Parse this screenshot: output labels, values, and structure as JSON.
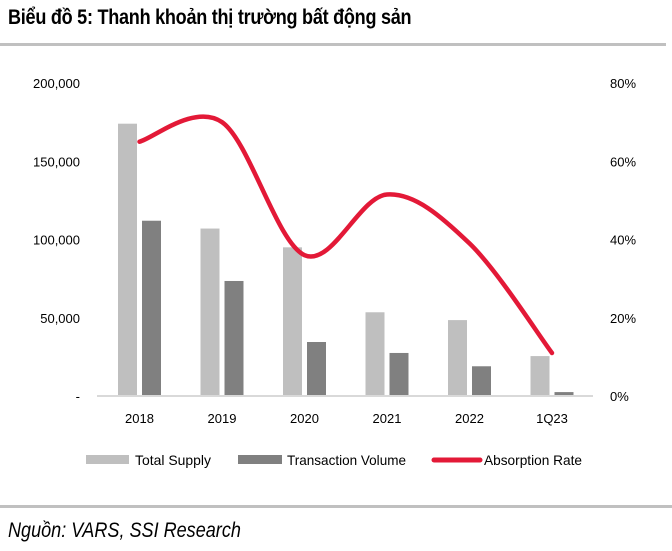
{
  "header": {
    "title": "Biểu đồ 5: Thanh khoản thị trường bất động sản"
  },
  "footer": {
    "source": "Nguồn: VARS, SSI Research"
  },
  "colors": {
    "supply": "#bfbfbf",
    "volume": "#808080",
    "absorption": "#e31937",
    "axis": "#d9d9d9",
    "rule": "#c0c0c0"
  },
  "chart_data": {
    "type": "bar",
    "title": "Biểu đồ 5: Thanh khoản thị trường bất động sản",
    "categories": [
      "2018",
      "2019",
      "2020",
      "2021",
      "2022",
      "1Q23"
    ],
    "series": [
      {
        "name": "Total Supply",
        "type": "bar",
        "axis": "left",
        "values": [
          174000,
          107000,
          95000,
          53500,
          48500,
          25500
        ]
      },
      {
        "name": "Transaction Volume",
        "type": "bar",
        "axis": "left",
        "values": [
          112000,
          73500,
          34500,
          27500,
          19000,
          2500
        ]
      },
      {
        "name": "Absorption Rate",
        "type": "line",
        "axis": "right",
        "smooth": true,
        "values": [
          0.65,
          0.7,
          0.36,
          0.515,
          0.39,
          0.11
        ]
      }
    ],
    "left_axis": {
      "min": 0,
      "max": 200000,
      "ticks": [
        0,
        50000,
        100000,
        150000,
        200000
      ],
      "tick_labels": [
        "-",
        "50,000",
        "100,000",
        "150,000",
        "200,000"
      ]
    },
    "right_axis": {
      "min": 0,
      "max": 0.8,
      "ticks": [
        0,
        0.2,
        0.4,
        0.6,
        0.8
      ],
      "tick_labels": [
        "0%",
        "20%",
        "40%",
        "60%",
        "80%"
      ]
    },
    "xlabel": "",
    "ylabel": "",
    "grid": false,
    "legend": {
      "position": "bottom",
      "entries": [
        "Total Supply",
        "Transaction Volume",
        "Absorption Rate"
      ]
    }
  }
}
